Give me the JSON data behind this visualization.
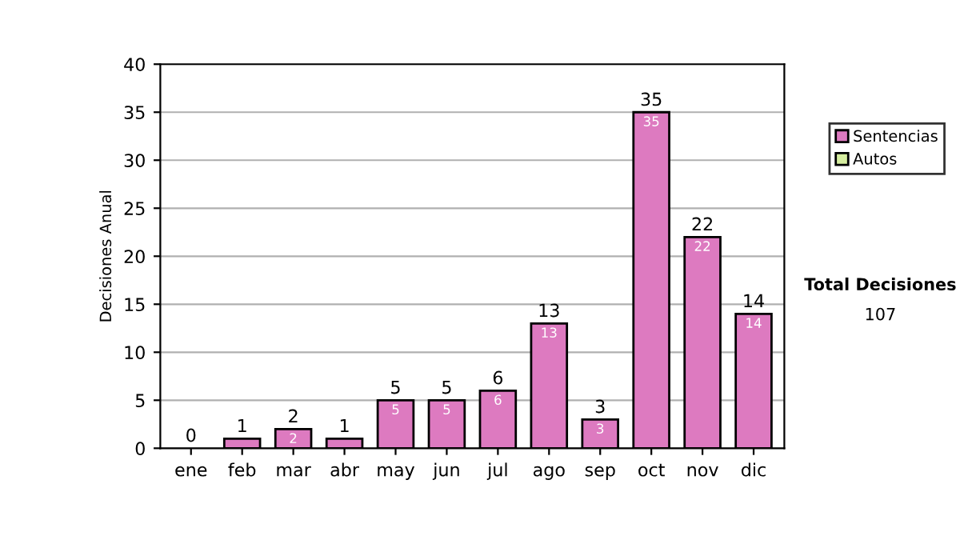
{
  "chart_data": {
    "type": "bar",
    "ylabel": "Decisiones Anual",
    "categories": [
      "ene",
      "feb",
      "mar",
      "abr",
      "may",
      "jun",
      "jul",
      "ago",
      "sep",
      "oct",
      "nov",
      "dic"
    ],
    "stacked": true,
    "series": [
      {
        "name": "Sentencias",
        "color": "#dd7ac0",
        "values": [
          0,
          1,
          2,
          1,
          5,
          5,
          6,
          13,
          3,
          35,
          22,
          14
        ],
        "value_labels": [
          null,
          null,
          "2",
          null,
          "5",
          "5",
          "6",
          "13",
          "3",
          "35",
          "22",
          "14"
        ]
      },
      {
        "name": "Autos",
        "color": "#d6eea0",
        "values": [
          0,
          0,
          0,
          0,
          0,
          0,
          0,
          0,
          0,
          0,
          0,
          0
        ]
      }
    ],
    "totals": [
      "0",
      "1",
      "2",
      "1",
      "5",
      "5",
      "6",
      "13",
      "3",
      "35",
      "22",
      "14"
    ],
    "ylim": [
      0,
      40
    ],
    "yticks": [
      0,
      5,
      10,
      15,
      20,
      25,
      30,
      35,
      40
    ],
    "grid": "y",
    "legend": "right",
    "annotations": [
      "Total Decisiones",
      "107"
    ]
  }
}
